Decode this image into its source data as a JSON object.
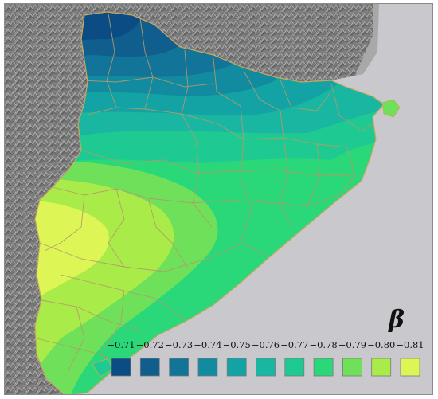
{
  "map": {
    "symbol": "β",
    "colors": {
      "sea": "#c9c8cd",
      "border": "#b49a6a"
    },
    "legend": [
      {
        "label": "−0.71",
        "value": -0.71,
        "color": "#0b4c84"
      },
      {
        "label": "−0.72",
        "value": -0.72,
        "color": "#0f5e8e"
      },
      {
        "label": "−0.73",
        "value": -0.73,
        "color": "#127498"
      },
      {
        "label": "−0.74",
        "value": -0.74,
        "color": "#128aa0"
      },
      {
        "label": "−0.75",
        "value": -0.75,
        "color": "#14a3a5"
      },
      {
        "label": "−0.76",
        "value": -0.76,
        "color": "#19b6a2"
      },
      {
        "label": "−0.77",
        "value": -0.77,
        "color": "#1fca92"
      },
      {
        "label": "−0.78",
        "value": -0.78,
        "color": "#2ad879"
      },
      {
        "label": "−0.79",
        "value": -0.79,
        "color": "#6fe05a"
      },
      {
        "label": "−0.80",
        "value": -0.8,
        "color": "#a9ec49"
      },
      {
        "label": "−0.81",
        "value": -0.81,
        "color": "#def655"
      }
    ]
  }
}
